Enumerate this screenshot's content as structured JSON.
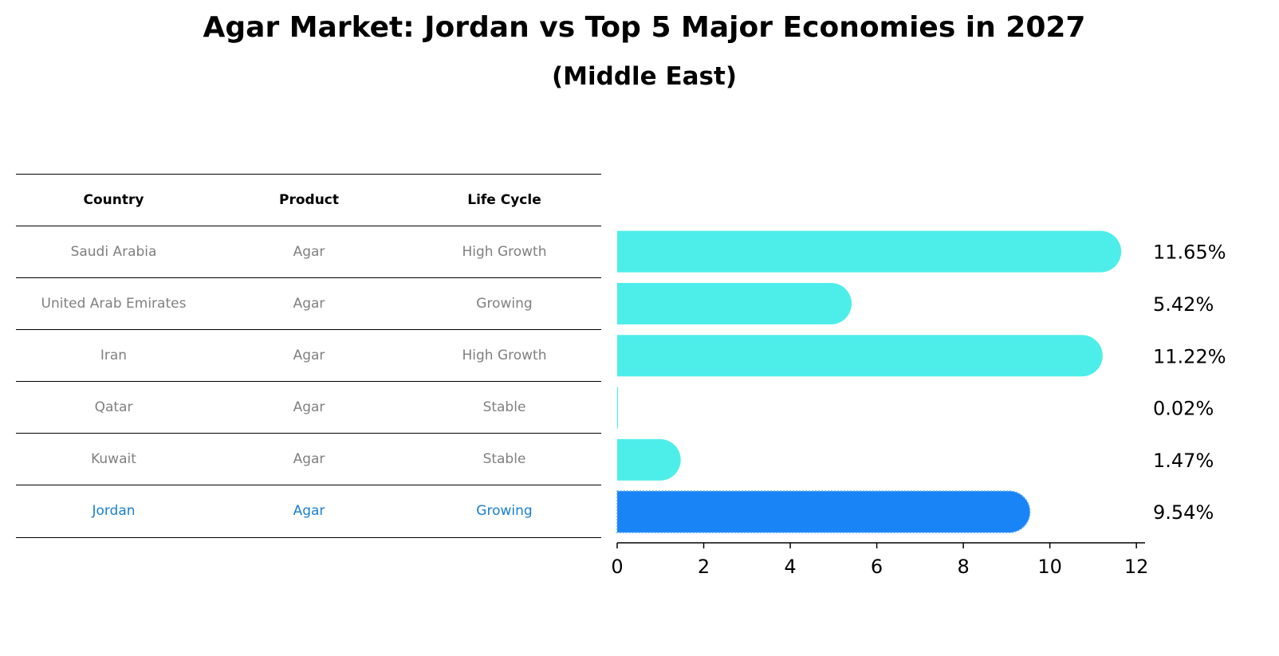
{
  "title": "Agar Market: Jordan vs Top 5 Major Economies in 2027",
  "subtitle": "(Middle East)",
  "table": {
    "headers": [
      "Country",
      "Product",
      "Life Cycle"
    ],
    "rows": [
      [
        "Saudi Arabia",
        "Agar",
        "High Growth"
      ],
      [
        "United Arab Emirates",
        "Agar",
        "Growing"
      ],
      [
        "Iran",
        "Agar",
        "High Growth"
      ],
      [
        "Qatar",
        "Agar",
        "Stable"
      ],
      [
        "Kuwait",
        "Agar",
        "Stable"
      ],
      [
        "Jordan",
        "Agar",
        "Growing"
      ]
    ]
  },
  "chart_data": {
    "type": "bar",
    "orientation": "horizontal",
    "categories": [
      "Saudi Arabia",
      "United Arab Emirates",
      "Iran",
      "Qatar",
      "Kuwait",
      "Jordan"
    ],
    "values": [
      11.65,
      5.42,
      11.22,
      0.02,
      1.47,
      9.54
    ],
    "labels": [
      "11.65%",
      "5.42%",
      "11.22%",
      "0.02%",
      "1.47%",
      "9.54%"
    ],
    "highlight": "Jordan",
    "xlim": [
      0,
      12.2
    ],
    "xticks": [
      0,
      2,
      4,
      6,
      8,
      10,
      12
    ],
    "grid": false,
    "colors": {
      "default": "#4deeea",
      "highlight": "#1984f5",
      "highlight_text": "#1a7fd1"
    }
  }
}
